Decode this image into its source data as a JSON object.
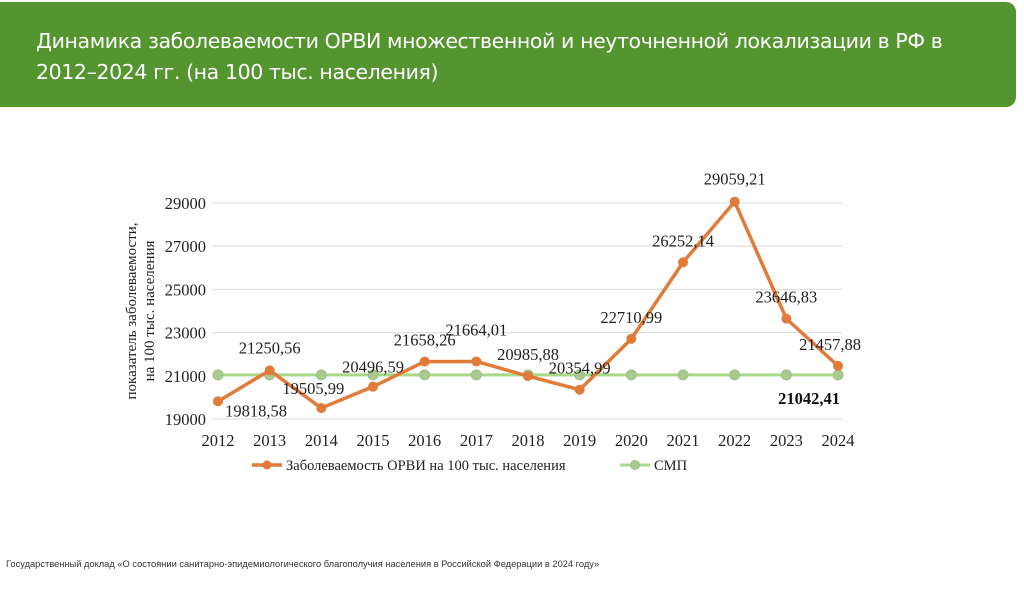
{
  "header": {
    "title": "Динамика заболеваемости ОРВИ множественной и неуточненной локализации в РФ в 2012–2024 гг. (на 100 тыс. населения)"
  },
  "footer": {
    "source": "Государственный доклад «О состоянии санитарно-эпидемиологического благополучия населения в Российской Федерации в 2024 году»"
  },
  "colors": {
    "header_bg": "#559530",
    "series_orvi": "#E07B39",
    "series_smp_line": "#A8D88A",
    "series_smp_marker": "#A9C98F",
    "grid": "#E2E2E2"
  },
  "chart_data": {
    "type": "line",
    "title": "",
    "xlabel": "",
    "ylabel": "показатель заболеваемости, на 100 тыс. населения",
    "ylabel_lines": [
      "показатель заболеваемости,",
      "на 100 тыс. населения"
    ],
    "ylim": [
      19000,
      29000
    ],
    "yticks": [
      19000,
      21000,
      23000,
      25000,
      27000,
      29000
    ],
    "ytick_labels": [
      "19000",
      "21000",
      "23000",
      "25000",
      "27000",
      "29000"
    ],
    "grid": true,
    "legend_position": "bottom",
    "categories": [
      "2012",
      "2013",
      "2014",
      "2015",
      "2016",
      "2017",
      "2018",
      "2019",
      "2020",
      "2021",
      "2022",
      "2023",
      "2024"
    ],
    "series": [
      {
        "name": "Заболеваемость ОРВИ на 100 тыс. населения",
        "values": [
          19818.58,
          21250.56,
          19505.99,
          20496.59,
          21658.26,
          21664.01,
          20985.88,
          20354.99,
          22710.99,
          26252.14,
          29059.21,
          23646.83,
          21457.88
        ],
        "labels": [
          "19818,58",
          "21250,56",
          "19505,99",
          "20496,59",
          "21658,26",
          "21664,01",
          "20985,88",
          "20354,99",
          "22710,99",
          "26252,14",
          "29059,21",
          "23646,83",
          "21457,88"
        ]
      },
      {
        "name": "СМП",
        "values": [
          21042.41,
          21042.41,
          21042.41,
          21042.41,
          21042.41,
          21042.41,
          21042.41,
          21042.41,
          21042.41,
          21042.41,
          21042.41,
          21042.41,
          21042.41
        ],
        "end_label": "21042,41"
      }
    ]
  }
}
